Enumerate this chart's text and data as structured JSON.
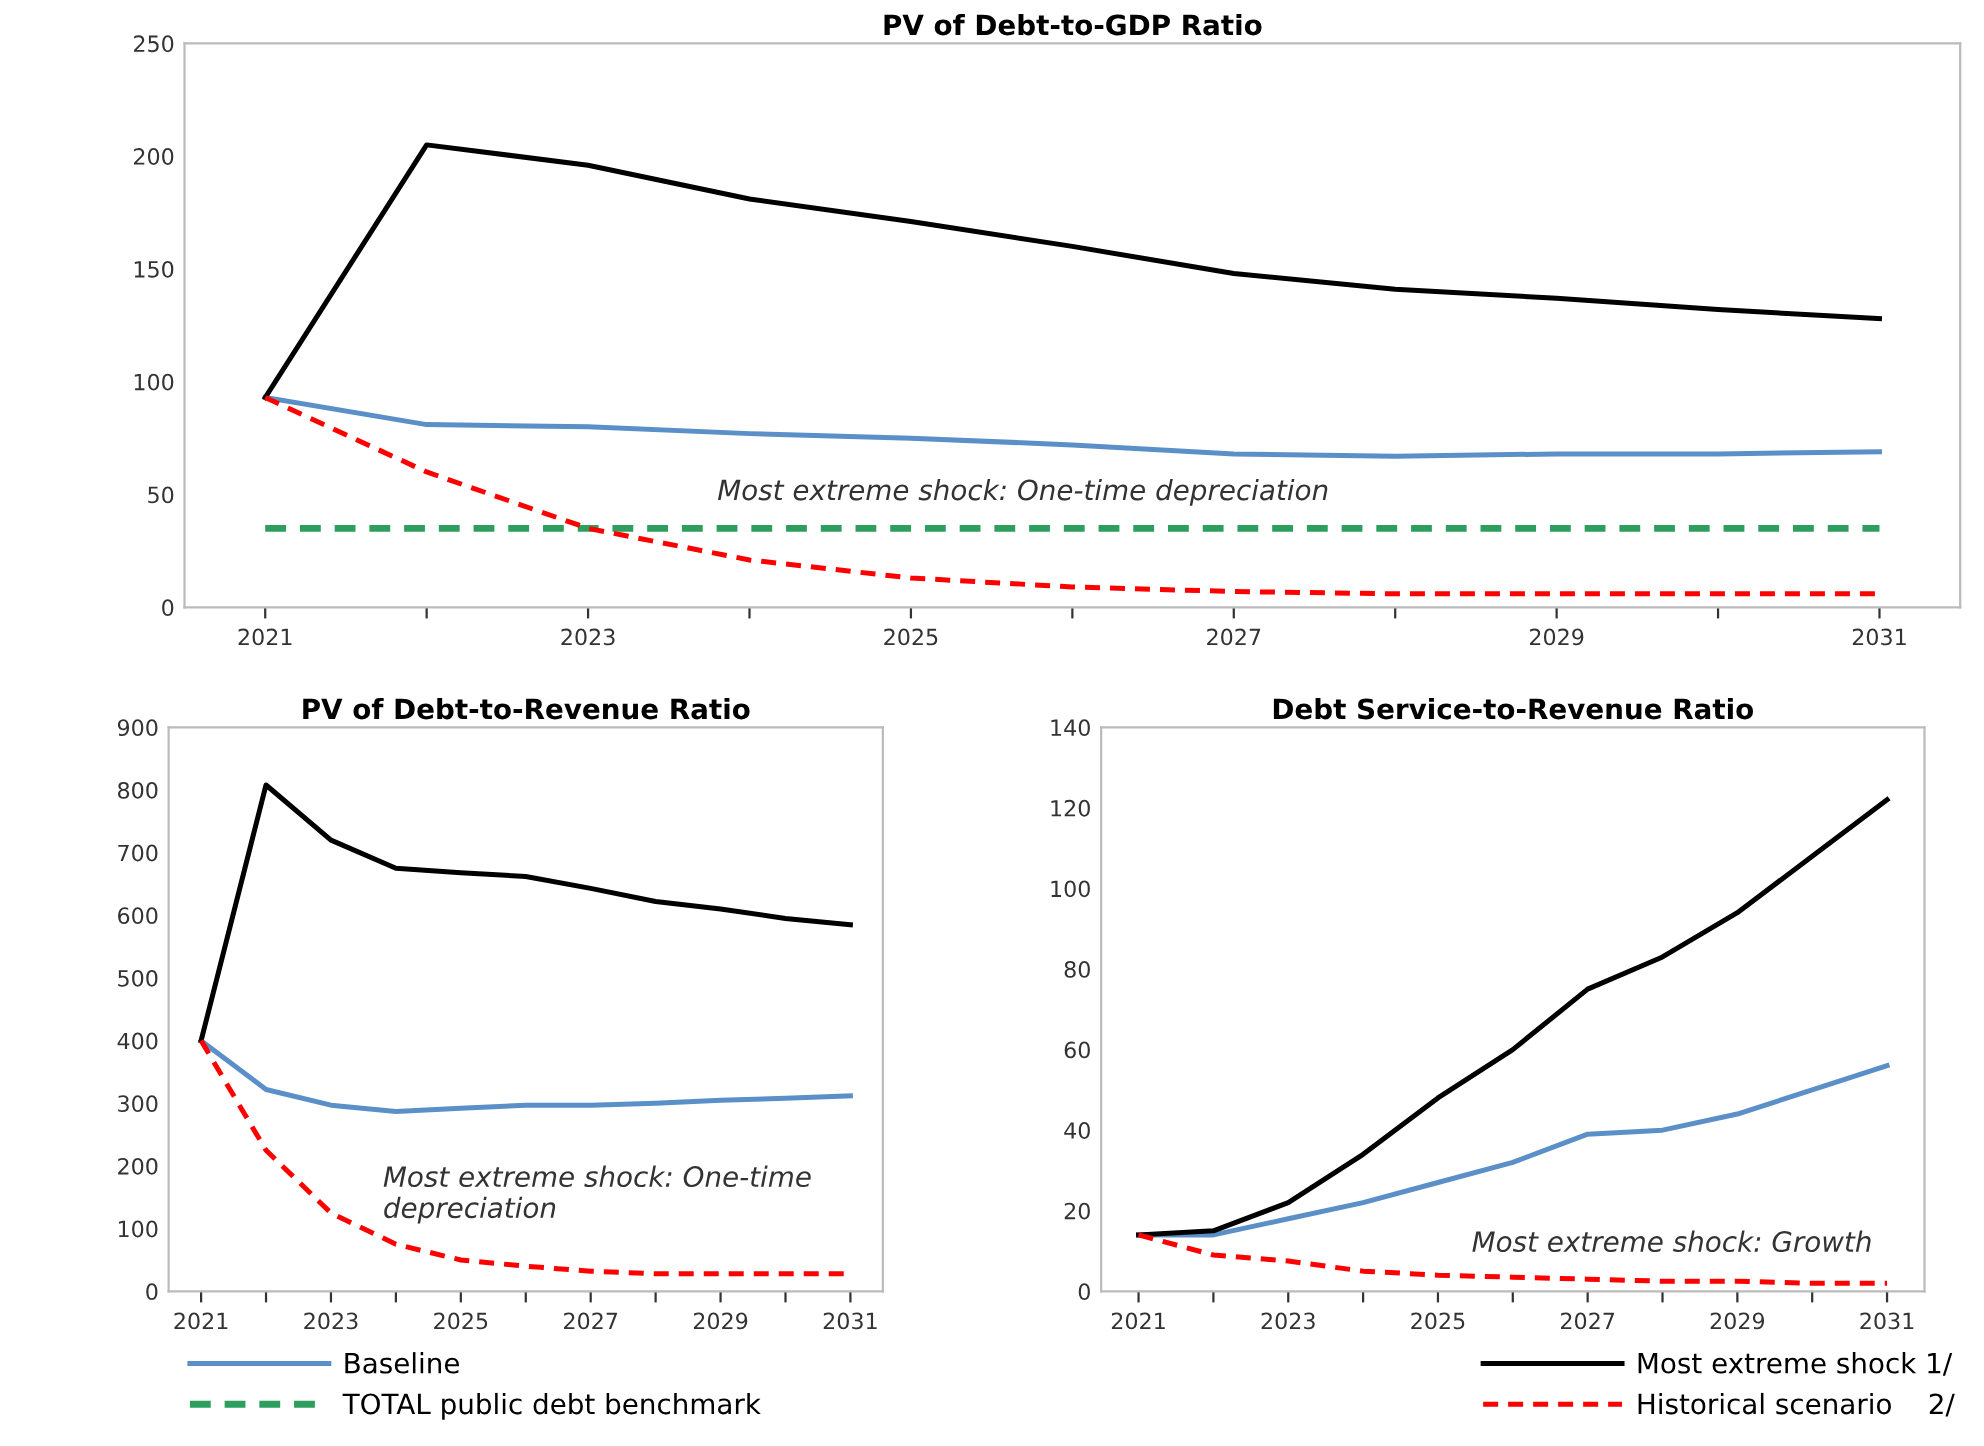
{
  "chart_data": [
    {
      "type": "line",
      "title": "PV of Debt-to-GDP Ratio",
      "x": [
        2021,
        2022,
        2023,
        2024,
        2025,
        2026,
        2027,
        2028,
        2029,
        2030,
        2031
      ],
      "xlim": [
        2020.5,
        2031.5
      ],
      "xticks": [
        2021,
        {
          "value": 2022,
          "label": null
        },
        2023,
        {
          "value": 2024,
          "label": null
        },
        2025,
        {
          "value": 2026,
          "label": null
        },
        2027,
        {
          "value": 2028,
          "label": null
        },
        2029,
        {
          "value": 2030,
          "label": null
        },
        2031
      ],
      "ylim": [
        0,
        250
      ],
      "yticks": [
        0,
        50,
        100,
        150,
        200,
        250
      ],
      "grid": false,
      "legend": "bottom",
      "annotations": [
        "Most extreme shock: One-time depreciation"
      ],
      "series": [
        {
          "name": "Baseline",
          "color": "#5b8fc7",
          "values": [
            93,
            81,
            80,
            77,
            75,
            72,
            68,
            67,
            68,
            68,
            69
          ]
        },
        {
          "name": "TOTAL public debt benchmark",
          "color": "#2e9e5e",
          "line_style": "dashed",
          "values": [
            35,
            35,
            35,
            35,
            35,
            35,
            35,
            35,
            35,
            35,
            35
          ]
        },
        {
          "name": "Most extreme shock 1/",
          "color": "#000000",
          "values": [
            93,
            205,
            196,
            181,
            171,
            160,
            148,
            141,
            137,
            132,
            128
          ]
        },
        {
          "name": "Historical scenario    2/",
          "color": "#ff0000",
          "line_style": "dashed",
          "values": [
            93,
            60,
            35,
            21,
            13,
            9,
            7,
            6,
            6,
            6,
            6
          ]
        }
      ]
    },
    {
      "type": "line",
      "title": "PV of Debt-to-Revenue Ratio",
      "x": [
        2021,
        2022,
        2023,
        2024,
        2025,
        2026,
        2027,
        2028,
        2029,
        2030,
        2031
      ],
      "xlim": [
        2020.5,
        2031.5
      ],
      "xticks": [
        2021,
        {
          "value": 2022,
          "label": null
        },
        2023,
        {
          "value": 2024,
          "label": null
        },
        2025,
        {
          "value": 2026,
          "label": null
        },
        2027,
        {
          "value": 2028,
          "label": null
        },
        2029,
        {
          "value": 2030,
          "label": null
        },
        2031
      ],
      "ylim": [
        0,
        900
      ],
      "yticks": [
        0,
        100,
        200,
        300,
        400,
        500,
        600,
        700,
        800,
        900
      ],
      "grid": false,
      "annotations": [
        "Most extreme shock: One-time\ndepreciation"
      ],
      "series": [
        {
          "color": "#5b8fc7",
          "values": [
            400,
            322,
            297,
            287,
            292,
            297,
            297,
            300,
            305,
            308,
            312
          ]
        },
        {
          "color": "#000000",
          "values": [
            400,
            808,
            720,
            675,
            668,
            662,
            643,
            622,
            610,
            595,
            585
          ]
        },
        {
          "color": "#ff0000",
          "line_style": "dashed",
          "values": [
            400,
            225,
            125,
            75,
            50,
            40,
            32,
            28,
            28,
            28,
            28
          ]
        }
      ]
    },
    {
      "type": "line",
      "title": "Debt Service-to-Revenue Ratio",
      "x": [
        2021,
        2022,
        2023,
        2024,
        2025,
        2026,
        2027,
        2028,
        2029,
        2030,
        2031
      ],
      "xlim": [
        2020.5,
        2031.5
      ],
      "xticks": [
        2021,
        {
          "value": 2022,
          "label": null
        },
        2023,
        {
          "value": 2024,
          "label": null
        },
        2025,
        {
          "value": 2026,
          "label": null
        },
        2027,
        {
          "value": 2028,
          "label": null
        },
        2029,
        {
          "value": 2030,
          "label": null
        },
        2031
      ],
      "ylim": [
        0,
        140
      ],
      "yticks": [
        0,
        20,
        40,
        60,
        80,
        100,
        120,
        140
      ],
      "grid": false,
      "annotations": [
        "Most extreme shock: Growth"
      ],
      "series": [
        {
          "color": "#5b8fc7",
          "values": [
            14,
            14,
            18,
            22,
            27,
            32,
            39,
            40,
            44,
            50,
            56
          ]
        },
        {
          "color": "#000000",
          "values": [
            14,
            15,
            22,
            34,
            48,
            60,
            75,
            83,
            94,
            108,
            122
          ]
        },
        {
          "color": "#ff0000",
          "line_style": "dashed",
          "values": [
            14,
            9,
            7.5,
            5,
            4,
            3.5,
            3,
            2.5,
            2.5,
            2,
            2
          ]
        }
      ]
    }
  ]
}
